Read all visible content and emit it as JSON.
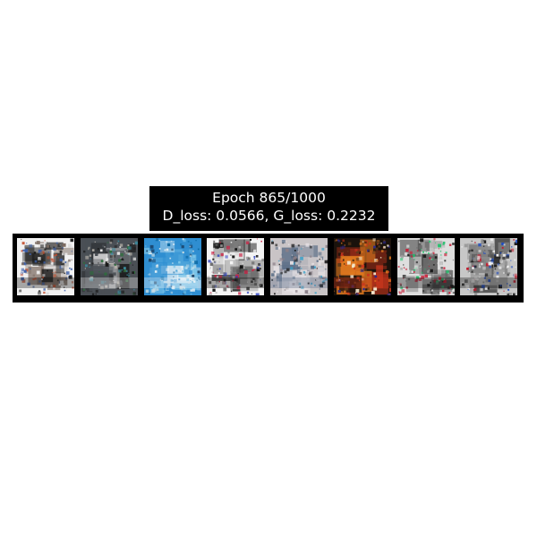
{
  "title": {
    "epoch_line": "Epoch 865/1000",
    "loss_line": "D_loss: 0.0566, G_loss: 0.2232"
  },
  "strip": {
    "sample_count": 8
  },
  "samples": [
    {
      "palette": [
        "#f2f2f2",
        "#1b1b1b",
        "#7a6a60",
        "#c34b2a",
        "#3b5ea8",
        "#d9d9d9"
      ]
    },
    {
      "palette": [
        "#4a4f55",
        "#e6e6e6",
        "#1a1a1a",
        "#3b8a9c",
        "#b5b0a8",
        "#2d6e3b"
      ]
    },
    {
      "palette": [
        "#2f8ed1",
        "#e9f2f6",
        "#7ac4e8",
        "#1a3f63",
        "#c7dbe3",
        "#0d6aa3"
      ]
    },
    {
      "palette": [
        "#f4f4f4",
        "#121212",
        "#6f6f6f",
        "#2a3fbf",
        "#cc2244",
        "#bdbdbd"
      ]
    },
    {
      "palette": [
        "#c9c4c6",
        "#5b6e86",
        "#e8e3e6",
        "#1a1a1a",
        "#3aa0c8",
        "#8a7f88"
      ]
    },
    {
      "palette": [
        "#1a120c",
        "#c8361d",
        "#e07a1f",
        "#f2e6cc",
        "#2d2a8c",
        "#5f3a1a"
      ]
    },
    {
      "palette": [
        "#dedede",
        "#161616",
        "#6a6a6a",
        "#1ec36a",
        "#c91d36",
        "#9d9d9d"
      ]
    },
    {
      "palette": [
        "#c7c7c7",
        "#1a1a1a",
        "#8c8c8c",
        "#1f4cbf",
        "#f2f2f2",
        "#c2182b"
      ]
    }
  ]
}
